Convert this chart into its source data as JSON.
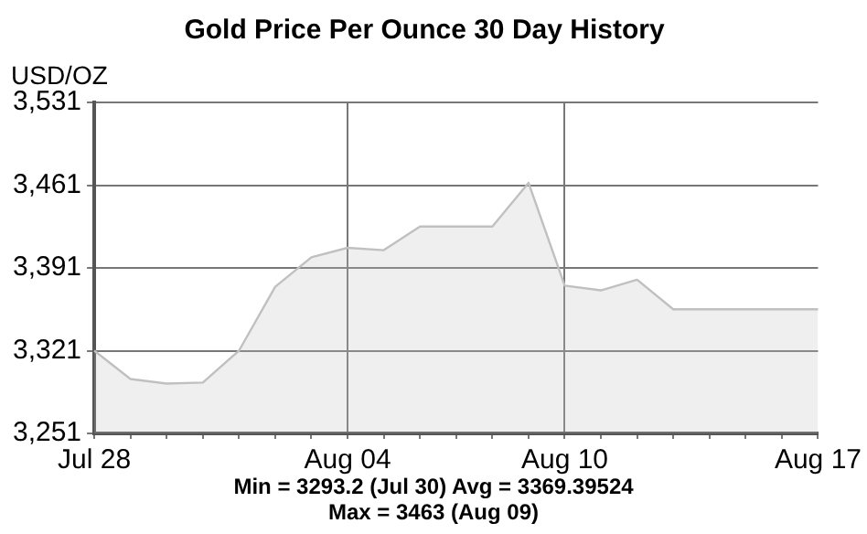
{
  "chart_data": {
    "type": "area",
    "title": "Gold Price Per Ounce 30 Day History",
    "ylabel": "USD/OZ",
    "categories": [
      "Jul 28",
      null,
      null,
      null,
      null,
      null,
      null,
      "Aug 04",
      null,
      null,
      null,
      null,
      null,
      "Aug 10",
      null,
      null,
      null,
      null,
      null,
      null,
      "Aug 17"
    ],
    "series": [
      {
        "color": "#c0c0c0",
        "values": [
          3321,
          3297,
          3293.2,
          3294,
          3321,
          3375,
          3400,
          3408,
          3406,
          3426,
          3426,
          3426,
          3463,
          3376,
          3372,
          3381,
          3356,
          3356,
          3356,
          3356,
          3356
        ]
      }
    ],
    "ylim": [
      3251,
      3531
    ],
    "yticks": [
      {
        "value": 3251,
        "label": "3,251"
      },
      {
        "value": 3321,
        "label": "3,321"
      },
      {
        "value": 3391,
        "label": "3,391"
      },
      {
        "value": 3461,
        "label": "3,461"
      },
      {
        "value": 3531,
        "label": "3,531"
      }
    ],
    "grid": true,
    "marker": "none",
    "line_style": "solid",
    "annotations": [
      "Min = 3293.2 (Jul 30) Avg = 3369.39524",
      "Max = 3463 (Aug 09)"
    ]
  }
}
